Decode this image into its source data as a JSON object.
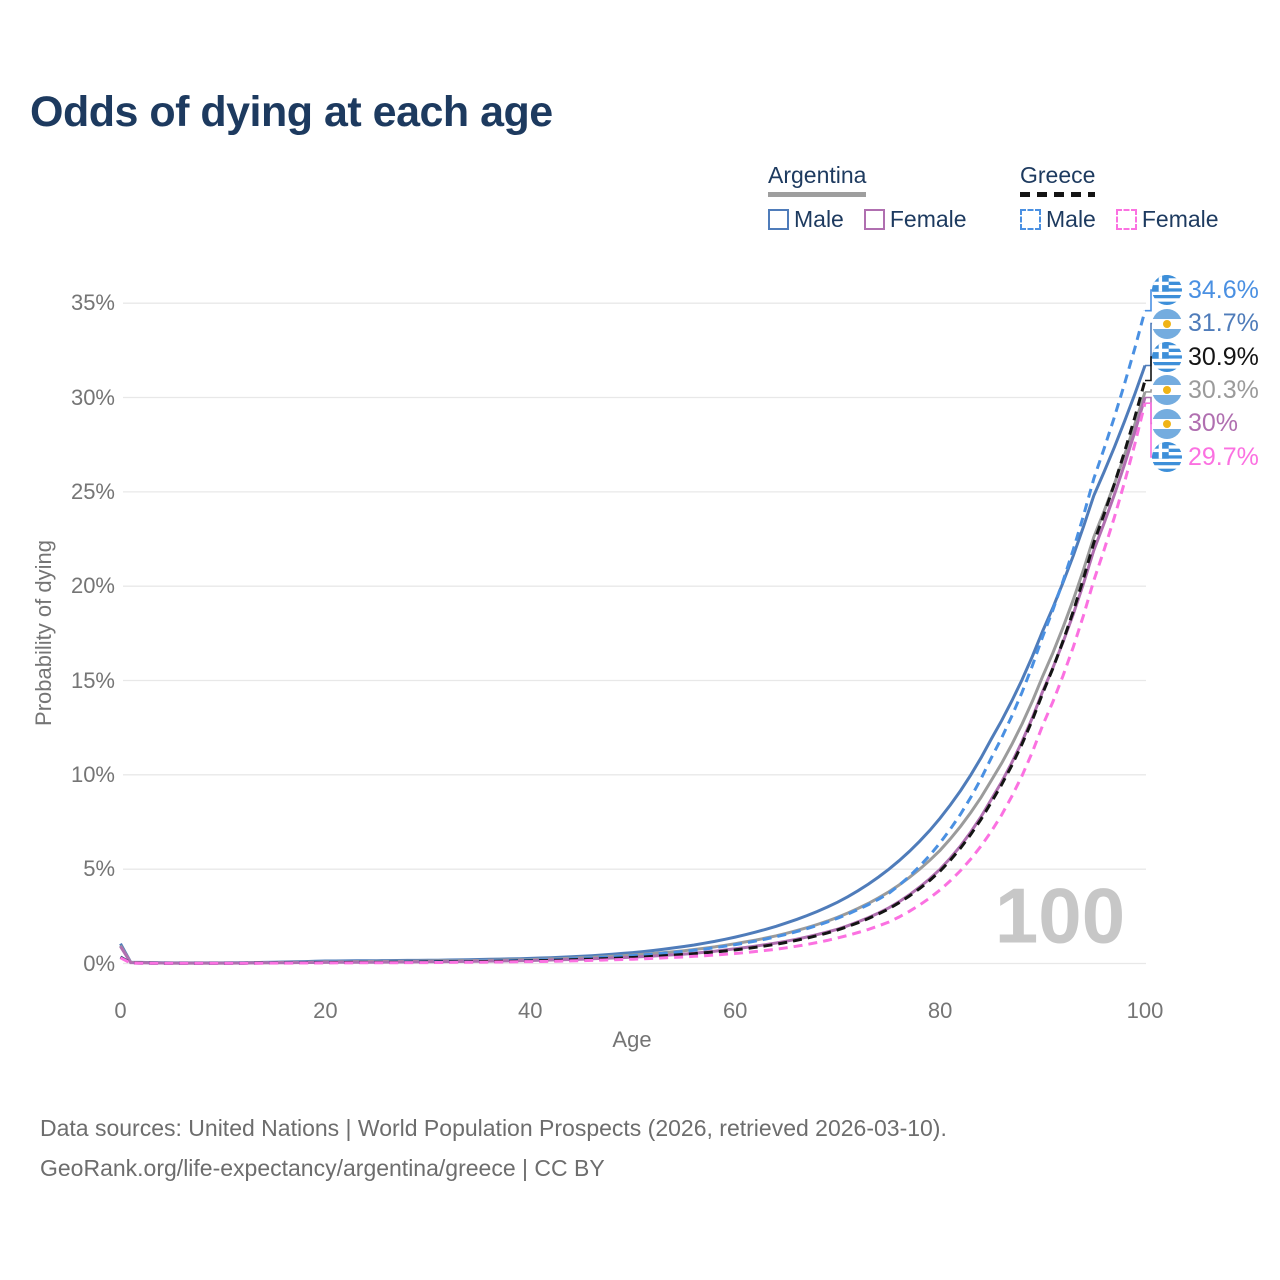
{
  "title": "Odds of dying at each age",
  "legend": {
    "groups": [
      {
        "country": "Argentina",
        "line_style": "solid",
        "items": [
          {
            "label": "Male",
            "series": "argentina-male"
          },
          {
            "label": "Female",
            "series": "argentina-female"
          }
        ]
      },
      {
        "country": "Greece",
        "line_style": "dashed",
        "items": [
          {
            "label": "Male",
            "series": "greece-male"
          },
          {
            "label": "Female",
            "series": "greece-female"
          }
        ]
      }
    ]
  },
  "chart_data": {
    "type": "line",
    "title": "Odds of dying at each age",
    "xlabel": "Age",
    "ylabel": "Probability of dying",
    "x_ticks": [
      0,
      20,
      40,
      60,
      80,
      100
    ],
    "y_ticks": [
      "0%",
      "5%",
      "10%",
      "15%",
      "20%",
      "25%",
      "30%",
      "35%"
    ],
    "xlim": [
      0,
      100
    ],
    "ylim_percent": [
      0,
      35
    ],
    "grid": "horizontal",
    "legend_position": "top-right",
    "ages": [
      0,
      1,
      5,
      10,
      15,
      20,
      25,
      30,
      35,
      40,
      45,
      50,
      55,
      60,
      65,
      70,
      75,
      80,
      85,
      90,
      95,
      100
    ],
    "series": [
      {
        "id": "argentina-male",
        "name": "Argentina Male",
        "color": "#4f7cba",
        "dashed": false,
        "end_label": "31.7%",
        "values": [
          1.05,
          0.07,
          0.03,
          0.03,
          0.07,
          0.13,
          0.15,
          0.17,
          0.21,
          0.27,
          0.38,
          0.58,
          0.9,
          1.4,
          2.15,
          3.25,
          5.0,
          7.7,
          11.9,
          17.6,
          24.8,
          31.7
        ]
      },
      {
        "id": "argentina-all",
        "name": "Argentina",
        "color": "#9b9b9b",
        "dashed": false,
        "end_label": "30.3%",
        "values": [
          0.95,
          0.06,
          0.02,
          0.02,
          0.05,
          0.09,
          0.11,
          0.13,
          0.16,
          0.21,
          0.3,
          0.45,
          0.68,
          1.05,
          1.6,
          2.45,
          3.8,
          6.0,
          9.7,
          15.2,
          22.6,
          30.3
        ]
      },
      {
        "id": "argentina-female",
        "name": "Argentina Female",
        "color": "#b06fb0",
        "dashed": false,
        "end_label": "30%",
        "values": [
          0.9,
          0.05,
          0.02,
          0.02,
          0.04,
          0.06,
          0.07,
          0.09,
          0.12,
          0.16,
          0.23,
          0.34,
          0.5,
          0.78,
          1.18,
          1.82,
          2.95,
          5.0,
          8.7,
          14.4,
          21.9,
          30.0
        ]
      },
      {
        "id": "greece-male",
        "name": "Greece Male",
        "color": "#4a90e2",
        "dashed": true,
        "end_label": "34.6%",
        "values": [
          0.35,
          0.03,
          0.01,
          0.01,
          0.04,
          0.07,
          0.08,
          0.1,
          0.13,
          0.18,
          0.27,
          0.42,
          0.64,
          1.0,
          1.55,
          2.4,
          3.72,
          6.4,
          10.9,
          17.3,
          25.7,
          34.6
        ]
      },
      {
        "id": "greece-all",
        "name": "Greece",
        "color": "#141414",
        "dashed": true,
        "end_label": "30.9%",
        "values": [
          0.33,
          0.03,
          0.01,
          0.01,
          0.03,
          0.05,
          0.06,
          0.08,
          0.1,
          0.14,
          0.21,
          0.32,
          0.48,
          0.72,
          1.12,
          1.78,
          2.9,
          4.9,
          8.55,
          14.3,
          22.3,
          30.9
        ]
      },
      {
        "id": "greece-female",
        "name": "Greece Female",
        "color": "#fb71e1",
        "dashed": true,
        "end_label": "29.7%",
        "values": [
          0.3,
          0.02,
          0.01,
          0.01,
          0.02,
          0.03,
          0.04,
          0.05,
          0.07,
          0.1,
          0.15,
          0.23,
          0.35,
          0.53,
          0.83,
          1.35,
          2.2,
          3.9,
          7.0,
          12.6,
          20.3,
          29.7
        ]
      }
    ]
  },
  "end_labels": [
    {
      "flag": "greece",
      "value": "34.6%",
      "series": "greece-male"
    },
    {
      "flag": "argentina",
      "value": "31.7%",
      "series": "argentina-male"
    },
    {
      "flag": "greece",
      "value": "30.9%",
      "series": "greece-all"
    },
    {
      "flag": "argentina",
      "value": "30.3%",
      "series": "argentina-all"
    },
    {
      "flag": "argentina",
      "value": "30%",
      "series": "argentina-female"
    },
    {
      "flag": "greece",
      "value": "29.7%",
      "series": "greece-female"
    }
  ],
  "watermark": "100",
  "footer": {
    "line1": "Data sources: United Nations | World Population Prospects (2026, retrieved 2026-03-10).",
    "line2": "GeoRank.org/life-expectancy/argentina/greece | CC BY"
  },
  "colors": {
    "title": "#1d3a5f",
    "axis_text": "#757575",
    "grid": "#e8e8e8",
    "watermark": "#c7c7c7",
    "footer_text": "#6d6d6d",
    "argentina_underline": "#9e9e9e",
    "greece_underline": "#141414",
    "greece_flag_blue": "#3d8fd9",
    "argentina_flag_blue": "#74acdf",
    "argentina_sun_yellow": "#f0b417"
  }
}
